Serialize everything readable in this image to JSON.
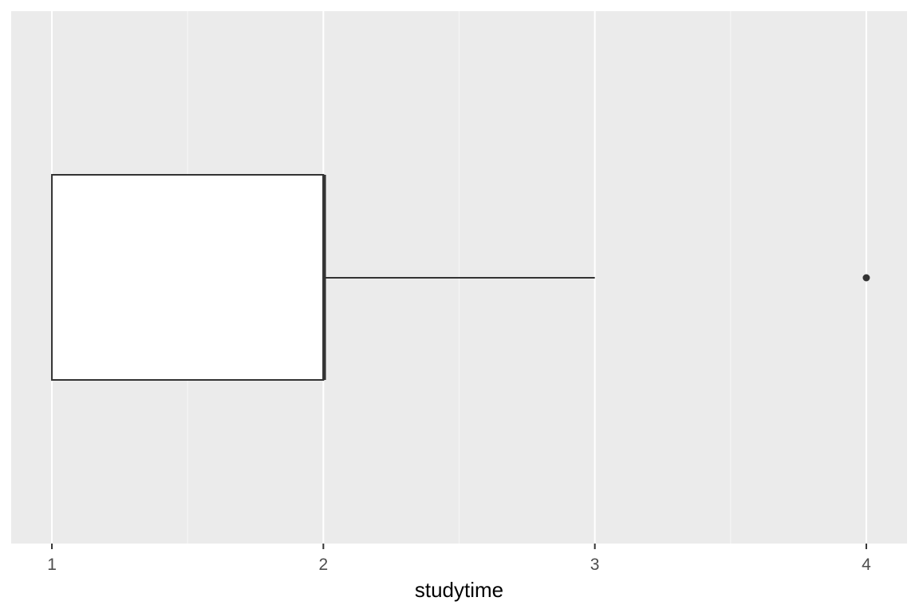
{
  "chart_data": {
    "type": "boxplot",
    "orientation": "horizontal",
    "xlabel": "studytime",
    "ylabel": "",
    "title": "",
    "xlim": [
      0.85,
      4.15
    ],
    "x_ticks": [
      1,
      2,
      3,
      4
    ],
    "x_tick_labels": [
      "1",
      "2",
      "3",
      "4"
    ],
    "grid": true,
    "y_ticks_shown": false,
    "box": {
      "min": 1,
      "q1": 1,
      "median": 2,
      "q3": 2,
      "whisker_low": 1,
      "whisker_high": 3,
      "outliers": [
        4
      ]
    },
    "colors": {
      "panel_background": "#ebebeb",
      "grid_major": "#ffffff",
      "grid_minor": "#f5f5f5",
      "box_fill": "#ffffff",
      "box_line": "#333333",
      "tick_label": "#4d4d4d",
      "axis_title": "#000000"
    }
  }
}
